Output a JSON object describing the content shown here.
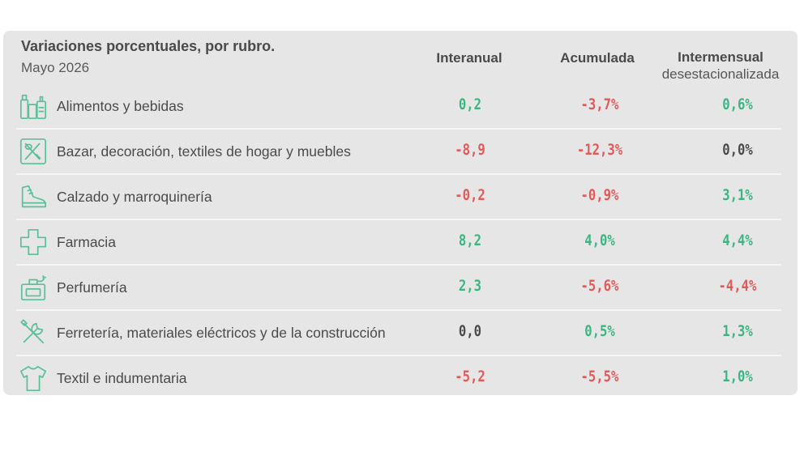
{
  "header": {
    "title": "Variaciones porcentuales, por rubro.",
    "subtitle": "Mayo 2026",
    "columns": [
      "Interanual",
      "Acumulada",
      "Intermensual"
    ],
    "column3_sub": "desestacionalizada"
  },
  "colors": {
    "positive": "#3cb580",
    "negative": "#e05a5a",
    "neutral": "#4a4a4a",
    "icon": "#5bbf98"
  },
  "rows": [
    {
      "icon": "grocery-icon",
      "label": "Alimentos y bebidas",
      "interanual": "0,2",
      "acumulada": "-3,7%",
      "intermensual": "0,6%"
    },
    {
      "icon": "bazaar-icon",
      "label": "Bazar, decoración, textiles de hogar y muebles",
      "interanual": "-8,9",
      "acumulada": "-12,3%",
      "intermensual": "0,0%"
    },
    {
      "icon": "shoe-icon",
      "label": "Calzado y marroquinería",
      "interanual": "-0,2",
      "acumulada": "-0,9%",
      "intermensual": "3,1%"
    },
    {
      "icon": "pharmacy-cross-icon",
      "label": "Farmacia",
      "interanual": "8,2",
      "acumulada": "4,0%",
      "intermensual": "4,4%"
    },
    {
      "icon": "perfume-icon",
      "label": "Perfumería",
      "interanual": "2,3",
      "acumulada": "-5,6%",
      "intermensual": "-4,4%"
    },
    {
      "icon": "tools-icon",
      "label": "Ferretería, materiales eléctricos y de la construcción",
      "interanual": "0,0",
      "acumulada": "0,5%",
      "intermensual": "1,3%"
    },
    {
      "icon": "tshirt-icon",
      "label": "Textil e indumentaria",
      "interanual": "-5,2",
      "acumulada": "-5,5%",
      "intermensual": "1,0%"
    }
  ]
}
